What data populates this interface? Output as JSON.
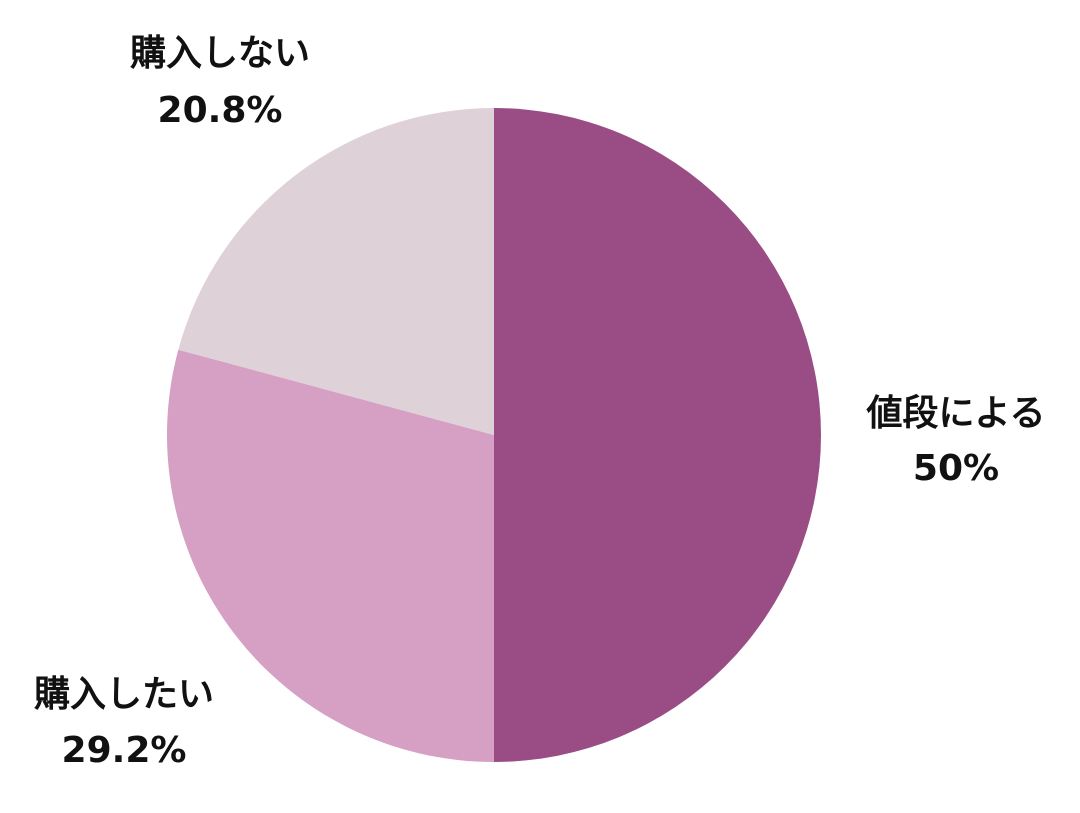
{
  "chart_data": {
    "type": "pie",
    "title": "",
    "slices": [
      {
        "label": "値段による",
        "value": 50,
        "value_label": "50%",
        "color": "#9a4c85"
      },
      {
        "label": "購入したい",
        "value": 29.2,
        "value_label": "29.2%",
        "color": "#d5a0c4"
      },
      {
        "label": "購入しない",
        "value": 20.8,
        "value_label": "20.8%",
        "color": "#dfd1d8"
      }
    ],
    "start_angle": "12 o'clock",
    "direction": "clockwise",
    "legend": "none (labels beside slices)"
  }
}
